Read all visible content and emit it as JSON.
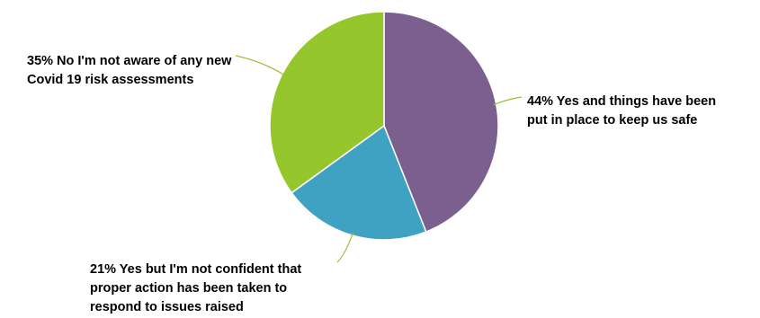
{
  "chart_data": {
    "type": "pie",
    "title": "",
    "slices": [
      {
        "label": "Yes and things have been put in place to keep us safe",
        "value": 44,
        "value_text": "44%",
        "lines": [
          "44% Yes and things have been",
          "put in place to keep us safe"
        ],
        "color": "#7b5f8e"
      },
      {
        "label": "Yes but I'm not confident that proper action has been taken to respond to issues raised",
        "value": 21,
        "value_text": "21%",
        "lines": [
          "21% Yes but I'm not confident that",
          "proper action has been taken to",
          "respond to issues raised"
        ],
        "color": "#40a2c2"
      },
      {
        "label": "No I'm not aware of any new Covid 19 risk assessments",
        "value": 35,
        "value_text": "35%",
        "lines": [
          "35% No I'm not aware of any new",
          "Covid 19 risk assessments"
        ],
        "color": "#95c72d"
      }
    ],
    "start_angle_deg": 0,
    "direction": "clockwise",
    "legend": "none",
    "leader_line_color": "#9bbf3a"
  }
}
